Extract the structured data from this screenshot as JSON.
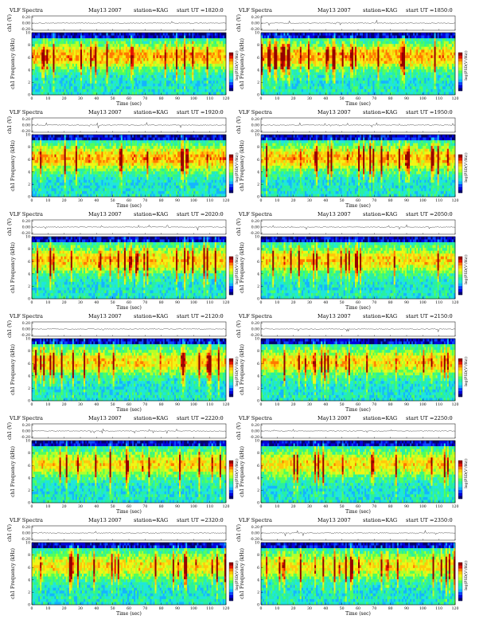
{
  "colors": {
    "colormap": [
      "#00006e",
      "#0000dc",
      "#0a46ff",
      "#14b4ff",
      "#1ee6dc",
      "#28f0a0",
      "#50ff5a",
      "#b4ff28",
      "#f0f514",
      "#ffc80a",
      "#ff7800",
      "#e61400",
      "#960000"
    ],
    "frame": "#000000",
    "background": "#ffffff"
  },
  "chart_data": [
    {
      "type": "heatmap",
      "title": "VLF Spectra",
      "date": "May13 2007",
      "station": "station=KAG",
      "start": "start UT =1820:0",
      "ch_label": "ch1 (V)",
      "ylabel": "ch1 Frequency (kHz)",
      "xlabel": "Time (sec)",
      "cbar_label": "log(PSD(V²/Hz))",
      "xlim": [
        0,
        120
      ],
      "ylim": [
        0,
        10
      ],
      "ch_ylim": [
        -0.2,
        0.2
      ],
      "xticks": [
        "0",
        "10",
        "20",
        "30",
        "40",
        "50",
        "60",
        "70",
        "80",
        "90",
        "100",
        "110",
        "120"
      ],
      "yticks": [
        "0",
        "2",
        "4",
        "6",
        "8",
        "10"
      ],
      "ch_yticks": [
        "0.20",
        "0.00",
        "-0.20"
      ],
      "activity": 0.82
    },
    {
      "type": "heatmap",
      "title": "VLF Spectra",
      "date": "May13 2007",
      "station": "station=KAG",
      "start": "start UT =1850:0",
      "ch_label": "ch1 (V)",
      "ylabel": "ch1 Frequency (kHz)",
      "xlabel": "Time (sec)",
      "cbar_label": "log(PSD(V²/Hz))",
      "xlim": [
        0,
        120
      ],
      "ylim": [
        0,
        10
      ],
      "ch_ylim": [
        -0.2,
        0.2
      ],
      "xticks": [
        "0",
        "10",
        "20",
        "30",
        "40",
        "50",
        "60",
        "70",
        "80",
        "90",
        "100",
        "110",
        "120"
      ],
      "yticks": [
        "0",
        "2",
        "4",
        "6",
        "8",
        "10"
      ],
      "ch_yticks": [
        "0.20",
        "0.00",
        "-0.20"
      ],
      "activity": 0.82
    },
    {
      "type": "heatmap",
      "title": "VLF Spectra",
      "date": "May13 2007",
      "station": "station=KAG",
      "start": "start UT =1920:0",
      "ch_label": "ch1 (V)",
      "ylabel": "ch1 Frequency (kHz)",
      "xlabel": "Time (sec)",
      "cbar_label": "log(PSD(V²/Hz))",
      "xlim": [
        0,
        120
      ],
      "ylim": [
        0,
        10
      ],
      "ch_ylim": [
        -0.2,
        0.2
      ],
      "xticks": [
        "0",
        "10",
        "20",
        "30",
        "40",
        "50",
        "60",
        "70",
        "80",
        "90",
        "100",
        "110",
        "120"
      ],
      "yticks": [
        "0",
        "2",
        "4",
        "6",
        "8",
        "10"
      ],
      "ch_yticks": [
        "0.20",
        "0.00",
        "-0.20"
      ],
      "activity": 0.78
    },
    {
      "type": "heatmap",
      "title": "VLF Spectra",
      "date": "May13 2007",
      "station": "station=KAG",
      "start": "start UT =1950:0",
      "ch_label": "ch1 (V)",
      "ylabel": "ch1 Frequency (kHz)",
      "xlabel": "Time (sec)",
      "cbar_label": "log(PSD(V²/Hz))",
      "xlim": [
        0,
        120
      ],
      "ylim": [
        0,
        10
      ],
      "ch_ylim": [
        -0.2,
        0.2
      ],
      "xticks": [
        "0",
        "10",
        "20",
        "30",
        "40",
        "50",
        "60",
        "70",
        "80",
        "90",
        "100",
        "110",
        "120"
      ],
      "yticks": [
        "0",
        "2",
        "4",
        "6",
        "8",
        "10"
      ],
      "ch_yticks": [
        "0.20",
        "0.00",
        "-0.20"
      ],
      "activity": 0.72
    },
    {
      "type": "heatmap",
      "title": "VLF Spectra",
      "date": "May13 2007",
      "station": "station=KAG",
      "start": "start UT =2020:0",
      "ch_label": "ch1 (V)",
      "ylabel": "ch1 Frequency (kHz)",
      "xlabel": "Time (sec)",
      "cbar_label": "log(PSD(V²/Hz))",
      "xlim": [
        0,
        120
      ],
      "ylim": [
        0,
        10
      ],
      "ch_ylim": [
        -0.2,
        0.2
      ],
      "xticks": [
        "0",
        "10",
        "20",
        "30",
        "40",
        "50",
        "60",
        "70",
        "80",
        "90",
        "100",
        "110",
        "120"
      ],
      "yticks": [
        "0",
        "2",
        "4",
        "6",
        "8",
        "10"
      ],
      "ch_yticks": [
        "0.20",
        "0.00",
        "-0.20"
      ],
      "activity": 0.62
    },
    {
      "type": "heatmap",
      "title": "VLF Spectra",
      "date": "May13 2007",
      "station": "station=KAG",
      "start": "start UT =2050:0",
      "ch_label": "ch1 (V)",
      "ylabel": "ch1 Frequency (kHz)",
      "xlabel": "Time (sec)",
      "cbar_label": "log(PSD(V²/Hz))",
      "xlim": [
        0,
        120
      ],
      "ylim": [
        0,
        10
      ],
      "ch_ylim": [
        -0.2,
        0.2
      ],
      "xticks": [
        "0",
        "10",
        "20",
        "30",
        "40",
        "50",
        "60",
        "70",
        "80",
        "90",
        "100",
        "110",
        "120"
      ],
      "yticks": [
        "0",
        "2",
        "4",
        "6",
        "8",
        "10"
      ],
      "ch_yticks": [
        "0.20",
        "0.00",
        "-0.20"
      ],
      "activity": 0.55
    },
    {
      "type": "heatmap",
      "title": "VLF Spectra",
      "date": "May13 2007",
      "station": "station=KAG",
      "start": "start UT =2120:0",
      "ch_label": "ch1 (V)",
      "ylabel": "ch1 Frequency (kHz)",
      "xlabel": "Time (sec)",
      "cbar_label": "log(PSD(V²/Hz))",
      "xlim": [
        0,
        120
      ],
      "ylim": [
        0,
        10
      ],
      "ch_ylim": [
        -0.2,
        0.2
      ],
      "xticks": [
        "0",
        "10",
        "20",
        "30",
        "40",
        "50",
        "60",
        "70",
        "80",
        "90",
        "100",
        "110",
        "120"
      ],
      "yticks": [
        "0",
        "2",
        "4",
        "6",
        "8",
        "10"
      ],
      "ch_yticks": [
        "0.20",
        "0.00",
        "-0.20"
      ],
      "activity": 0.5
    },
    {
      "type": "heatmap",
      "title": "VLF Spectra",
      "date": "May13 2007",
      "station": "station=KAG",
      "start": "start UT =2150:0",
      "ch_label": "ch1 (V)",
      "ylabel": "ch1 Frequency (kHz)",
      "xlabel": "Time (sec)",
      "cbar_label": "log(PSD(V²/Hz))",
      "xlim": [
        0,
        120
      ],
      "ylim": [
        0,
        10
      ],
      "ch_ylim": [
        -0.2,
        0.2
      ],
      "xticks": [
        "0",
        "10",
        "20",
        "30",
        "40",
        "50",
        "60",
        "70",
        "80",
        "90",
        "100",
        "110",
        "120"
      ],
      "yticks": [
        "0",
        "2",
        "4",
        "6",
        "8",
        "10"
      ],
      "ch_yticks": [
        "0.20",
        "0.00",
        "-0.20"
      ],
      "activity": 0.5
    },
    {
      "type": "heatmap",
      "title": "VLF Spectra",
      "date": "May13 2007",
      "station": "station=KAG",
      "start": "start UT =2220:0",
      "ch_label": "ch1 (V)",
      "ylabel": "ch1 Frequency (kHz)",
      "xlabel": "Time (sec)",
      "cbar_label": "log(PSD(V²/Hz))",
      "xlim": [
        0,
        120
      ],
      "ylim": [
        0,
        10
      ],
      "ch_ylim": [
        -0.2,
        0.2
      ],
      "xticks": [
        "0",
        "10",
        "20",
        "30",
        "40",
        "50",
        "60",
        "70",
        "80",
        "90",
        "100",
        "110",
        "120"
      ],
      "yticks": [
        "0",
        "2",
        "4",
        "6",
        "8",
        "10"
      ],
      "ch_yticks": [
        "0.20",
        "0.00",
        "-0.20"
      ],
      "activity": 0.45
    },
    {
      "type": "heatmap",
      "title": "VLF Spectra",
      "date": "May13 2007",
      "station": "station=KAG",
      "start": "start UT =2250:0",
      "ch_label": "ch1 (V)",
      "ylabel": "ch1 Frequency (kHz)",
      "xlabel": "Time (sec)",
      "cbar_label": "log(PSD(V²/Hz))",
      "xlim": [
        0,
        120
      ],
      "ylim": [
        0,
        10
      ],
      "ch_ylim": [
        -0.2,
        0.2
      ],
      "xticks": [
        "0",
        "10",
        "20",
        "30",
        "40",
        "50",
        "60",
        "70",
        "80",
        "90",
        "100",
        "110",
        "120"
      ],
      "yticks": [
        "0",
        "2",
        "4",
        "6",
        "8",
        "10"
      ],
      "ch_yticks": [
        "0.20",
        "0.00",
        "-0.20"
      ],
      "activity": 0.48
    },
    {
      "type": "heatmap",
      "title": "VLF Spectra",
      "date": "May13 2007",
      "station": "station=KAG",
      "start": "start UT =2320:0",
      "ch_label": "ch1 (V)",
      "ylabel": "ch1 Frequency (kHz)",
      "xlabel": "Time (sec)",
      "cbar_label": "log(PSD(V²/Hz))",
      "xlim": [
        0,
        120
      ],
      "ylim": [
        0,
        10
      ],
      "ch_ylim": [
        -0.2,
        0.2
      ],
      "xticks": [
        "0",
        "10",
        "20",
        "30",
        "40",
        "50",
        "60",
        "70",
        "80",
        "90",
        "100",
        "110",
        "120"
      ],
      "yticks": [
        "0",
        "2",
        "4",
        "6",
        "8",
        "10"
      ],
      "ch_yticks": [
        "0.20",
        "0.00",
        "-0.20"
      ],
      "activity": 0.42
    },
    {
      "type": "heatmap",
      "title": "VLF Spectra",
      "date": "May13 2007",
      "station": "station=KAG",
      "start": "start UT =2350:0",
      "ch_label": "ch1 (V)",
      "ylabel": "ch1 Frequency (kHz)",
      "xlabel": "Time (sec)",
      "cbar_label": "log(PSD(V²/Hz))",
      "xlim": [
        0,
        120
      ],
      "ylim": [
        0,
        10
      ],
      "ch_ylim": [
        -0.2,
        0.2
      ],
      "xticks": [
        "0",
        "10",
        "20",
        "30",
        "40",
        "50",
        "60",
        "70",
        "80",
        "90",
        "100",
        "110",
        "120"
      ],
      "yticks": [
        "0",
        "2",
        "4",
        "6",
        "8",
        "10"
      ],
      "ch_yticks": [
        "0.20",
        "0.00",
        "-0.20"
      ],
      "activity": 0.4
    }
  ]
}
